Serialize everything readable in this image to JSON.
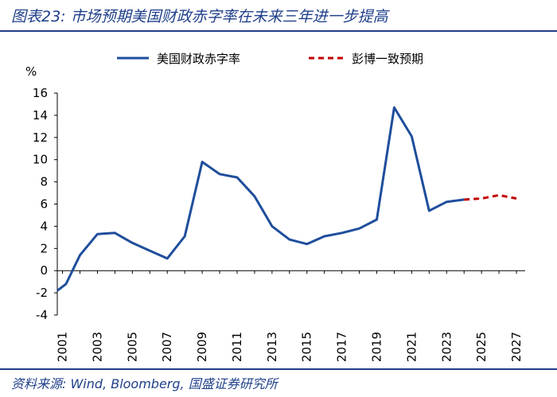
{
  "header": {
    "title": "图表23:  市场预期美国财政赤字率在未来三年进一步提高"
  },
  "footer": {
    "source": "资料来源:  Wind,  Bloomberg,  国盛证券研究所"
  },
  "colors": {
    "actual": "#1f4e9c",
    "forecast": "#c00000",
    "brand": "#1f3f8a"
  },
  "chart_data": {
    "type": "line",
    "title": "",
    "ylabel": "%",
    "xlabel": "",
    "ylim": [
      -4,
      16
    ],
    "yticks": [
      -4,
      -2,
      0,
      2,
      4,
      6,
      8,
      10,
      12,
      14,
      16
    ],
    "xlim": [
      2001,
      2027
    ],
    "xtick_labels": [
      "2001",
      "2003",
      "2005",
      "2007",
      "2009",
      "2011",
      "2013",
      "2015",
      "2017",
      "2019",
      "2021",
      "2023",
      "2025",
      "2027"
    ],
    "legend_position": "top",
    "series": [
      {
        "name": "美国财政赤字率",
        "style": "solid",
        "x": [
          2000.7,
          2001.2,
          2002,
          2003,
          2004,
          2005,
          2006,
          2007,
          2008,
          2009,
          2010,
          2011,
          2012,
          2013,
          2014,
          2015,
          2016,
          2017,
          2018,
          2019,
          2020,
          2021,
          2022,
          2023,
          2024
        ],
        "y": [
          -1.8,
          -1.2,
          1.4,
          3.3,
          3.4,
          2.5,
          1.8,
          1.1,
          3.1,
          9.8,
          8.7,
          8.4,
          6.7,
          4.0,
          2.8,
          2.4,
          3.1,
          3.4,
          3.8,
          4.6,
          14.7,
          12.1,
          5.4,
          6.2,
          6.4
        ]
      },
      {
        "name": "彭博一致预期",
        "style": "dashed",
        "x": [
          2024,
          2025,
          2026,
          2027
        ],
        "y": [
          6.4,
          6.5,
          6.8,
          6.5
        ]
      }
    ]
  }
}
